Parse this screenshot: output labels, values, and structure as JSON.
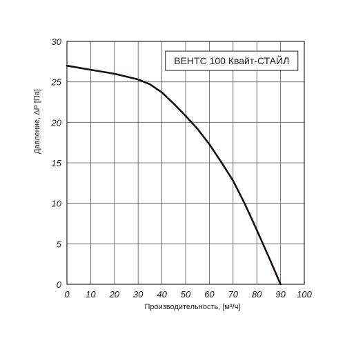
{
  "chart_data": {
    "type": "line",
    "xlabel": "Производительность, [м³/ч]",
    "ylabel": "Давление, ΔP [Па]",
    "xlim": [
      0,
      100
    ],
    "ylim": [
      0,
      30
    ],
    "x_ticks": [
      "0",
      "10",
      "20",
      "30",
      "40",
      "50",
      "60",
      "70",
      "80",
      "90",
      "100"
    ],
    "y_ticks": [
      "0",
      "5",
      "10",
      "15",
      "20",
      "25",
      "30"
    ],
    "grid": true,
    "legend_position": "top-right",
    "series": [
      {
        "name": "ВЕНТС 100 Квайт-СТАЙЛ",
        "color": "#1a1010",
        "x": [
          0,
          10,
          20,
          30,
          35,
          40,
          45,
          50,
          55,
          60,
          65,
          70,
          75,
          80,
          85,
          90
        ],
        "y": [
          27,
          26.5,
          26,
          25.3,
          24.7,
          23.7,
          22.3,
          20.8,
          19.2,
          17.3,
          15.1,
          12.8,
          9.9,
          6.7,
          3.4,
          0
        ]
      }
    ]
  }
}
